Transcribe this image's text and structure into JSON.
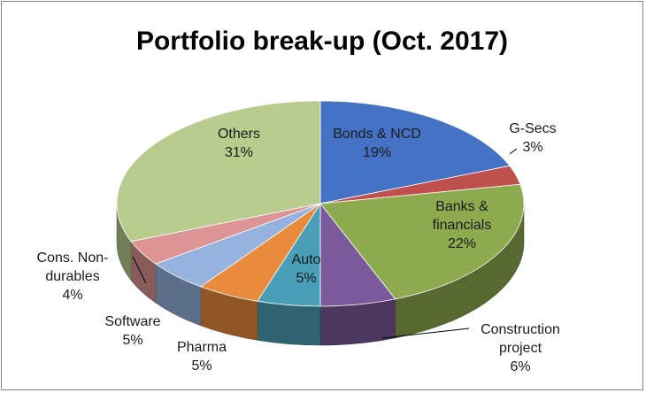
{
  "chart_data": {
    "type": "pie",
    "title": "Portfolio break-up (Oct. 2017)",
    "labels": [
      "Bonds & NCD",
      "G-Secs",
      "Banks & financials",
      "Construction project",
      "Auto",
      "Pharma",
      "Software",
      "Cons. Non-durables",
      "Others"
    ],
    "values": [
      19,
      3,
      22,
      6,
      5,
      5,
      5,
      4,
      31
    ],
    "value_labels": [
      "19%",
      "3%",
      "22%",
      "6%",
      "5%",
      "5%",
      "5%",
      "4%",
      "31%"
    ],
    "label_lines": [
      [
        "Bonds & NCD"
      ],
      [
        "G-Secs"
      ],
      [
        "Banks &",
        "financials"
      ],
      [
        "Construction",
        "project"
      ],
      [
        "Auto"
      ],
      [
        "Pharma"
      ],
      [
        "Software"
      ],
      [
        "Cons. Non-",
        "durables"
      ],
      [
        "Others"
      ]
    ],
    "colors": [
      "#4472c4",
      "#c0504d",
      "#8daa4f",
      "#7a5a9a",
      "#4a9fb8",
      "#e98a3c",
      "#95b3de",
      "#dd9495",
      "#b8cc8e"
    ],
    "style": "3d-pie",
    "legend": "none"
  }
}
